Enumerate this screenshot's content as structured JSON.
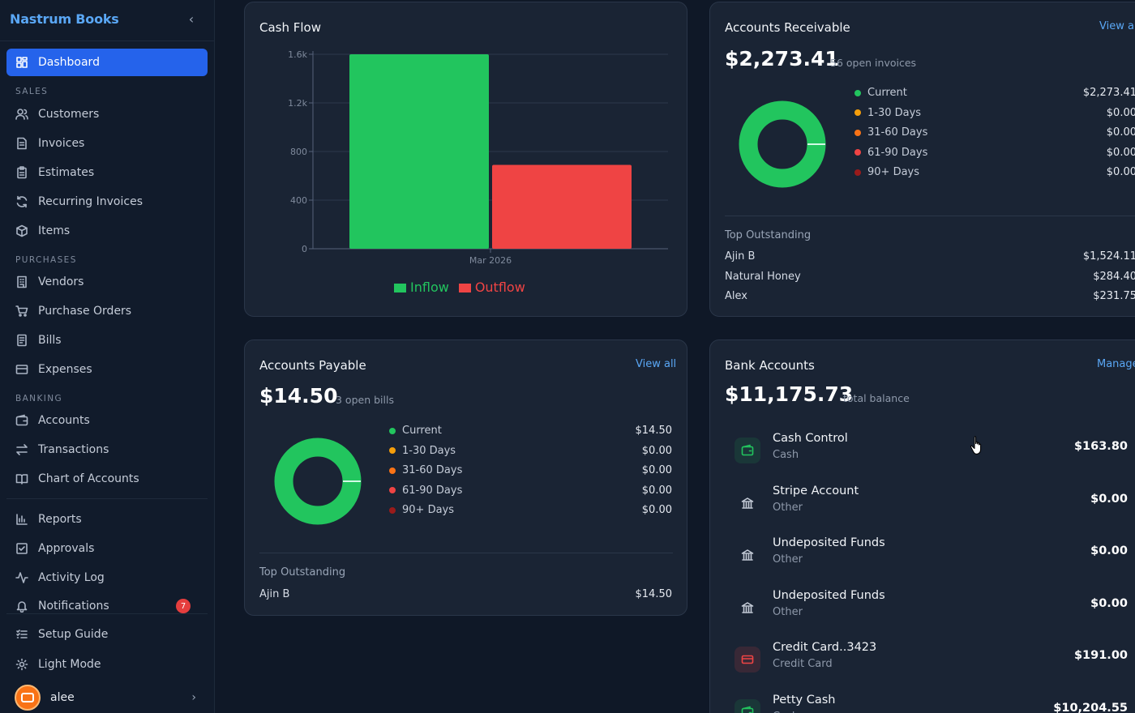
{
  "app": {
    "brand": "Nastrum Books"
  },
  "sidebar": {
    "dashboard": "Dashboard",
    "sales_label": "SALES",
    "sales": [
      "Customers",
      "Invoices",
      "Estimates",
      "Recurring Invoices",
      "Items"
    ],
    "purchases_label": "PURCHASES",
    "purchases": [
      "Vendors",
      "Purchase Orders",
      "Bills",
      "Expenses"
    ],
    "banking_label": "BANKING",
    "banking": [
      "Accounts",
      "Transactions",
      "Chart of Accounts"
    ],
    "other": [
      "Reports",
      "Approvals",
      "Activity Log",
      "Notifications"
    ],
    "notifications_count": "7",
    "footer": [
      "Setup Guide",
      "Light Mode"
    ],
    "user": "alee"
  },
  "cash_flow": {
    "title": "Cash Flow",
    "legend": [
      "Inflow",
      "Outflow"
    ]
  },
  "chart_data": {
    "type": "bar",
    "title": "Cash Flow",
    "categories": [
      "Mar 2026"
    ],
    "series": [
      {
        "name": "Inflow",
        "values": [
          1600
        ],
        "color": "#22c55e"
      },
      {
        "name": "Outflow",
        "values": [
          690
        ],
        "color": "#ef4444"
      }
    ],
    "yticks": [
      "0",
      "400",
      "800",
      "1.2k",
      "1.6k"
    ],
    "ylim": [
      0,
      1600
    ],
    "grid": true,
    "legend": "bottom"
  },
  "receivable": {
    "title": "Accounts Receivable",
    "view_all": "View all",
    "amount": "$2,273.41",
    "note": "56 open invoices",
    "aging": [
      {
        "label": "Current",
        "value": "$2,273.41",
        "color": "#22c55e"
      },
      {
        "label": "1-30 Days",
        "value": "$0.00",
        "color": "#f59e0b"
      },
      {
        "label": "31-60 Days",
        "value": "$0.00",
        "color": "#f97316"
      },
      {
        "label": "61-90 Days",
        "value": "$0.00",
        "color": "#ef4444"
      },
      {
        "label": "90+ Days",
        "value": "$0.00",
        "color": "#991b1b"
      }
    ],
    "top_label": "Top Outstanding",
    "top": [
      {
        "name": "Ajin B",
        "value": "$1,524.11"
      },
      {
        "name": "Natural Honey",
        "value": "$284.40"
      },
      {
        "name": "Alex",
        "value": "$231.75"
      }
    ]
  },
  "payable": {
    "title": "Accounts Payable",
    "view_all": "View all",
    "amount": "$14.50",
    "note": "3 open bills",
    "aging": [
      {
        "label": "Current",
        "value": "$14.50",
        "color": "#22c55e"
      },
      {
        "label": "1-30 Days",
        "value": "$0.00",
        "color": "#f59e0b"
      },
      {
        "label": "31-60 Days",
        "value": "$0.00",
        "color": "#f97316"
      },
      {
        "label": "61-90 Days",
        "value": "$0.00",
        "color": "#ef4444"
      },
      {
        "label": "90+ Days",
        "value": "$0.00",
        "color": "#991b1b"
      }
    ],
    "top_label": "Top Outstanding",
    "top": [
      {
        "name": "Ajin B",
        "value": "$14.50"
      }
    ]
  },
  "bank": {
    "title": "Bank Accounts",
    "manage": "Manage",
    "amount": "$11,175.73",
    "note": "total balance",
    "accounts": [
      {
        "name": "Cash Control",
        "type": "Cash",
        "balance": "$163.80",
        "icon": "wallet-icon"
      },
      {
        "name": "Stripe Account",
        "type": "Other",
        "balance": "$0.00",
        "icon": "bank-icon"
      },
      {
        "name": "Undeposited Funds",
        "type": "Other",
        "balance": "$0.00",
        "icon": "bank-icon"
      },
      {
        "name": "Undeposited Funds",
        "type": "Other",
        "balance": "$0.00",
        "icon": "bank-icon"
      },
      {
        "name": "Credit Card..3423",
        "type": "Credit Card",
        "balance": "$191.00",
        "icon": "credit-card-icon"
      },
      {
        "name": "Petty Cash",
        "type": "Cash",
        "balance": "$10,204.55",
        "icon": "wallet-icon"
      }
    ]
  }
}
